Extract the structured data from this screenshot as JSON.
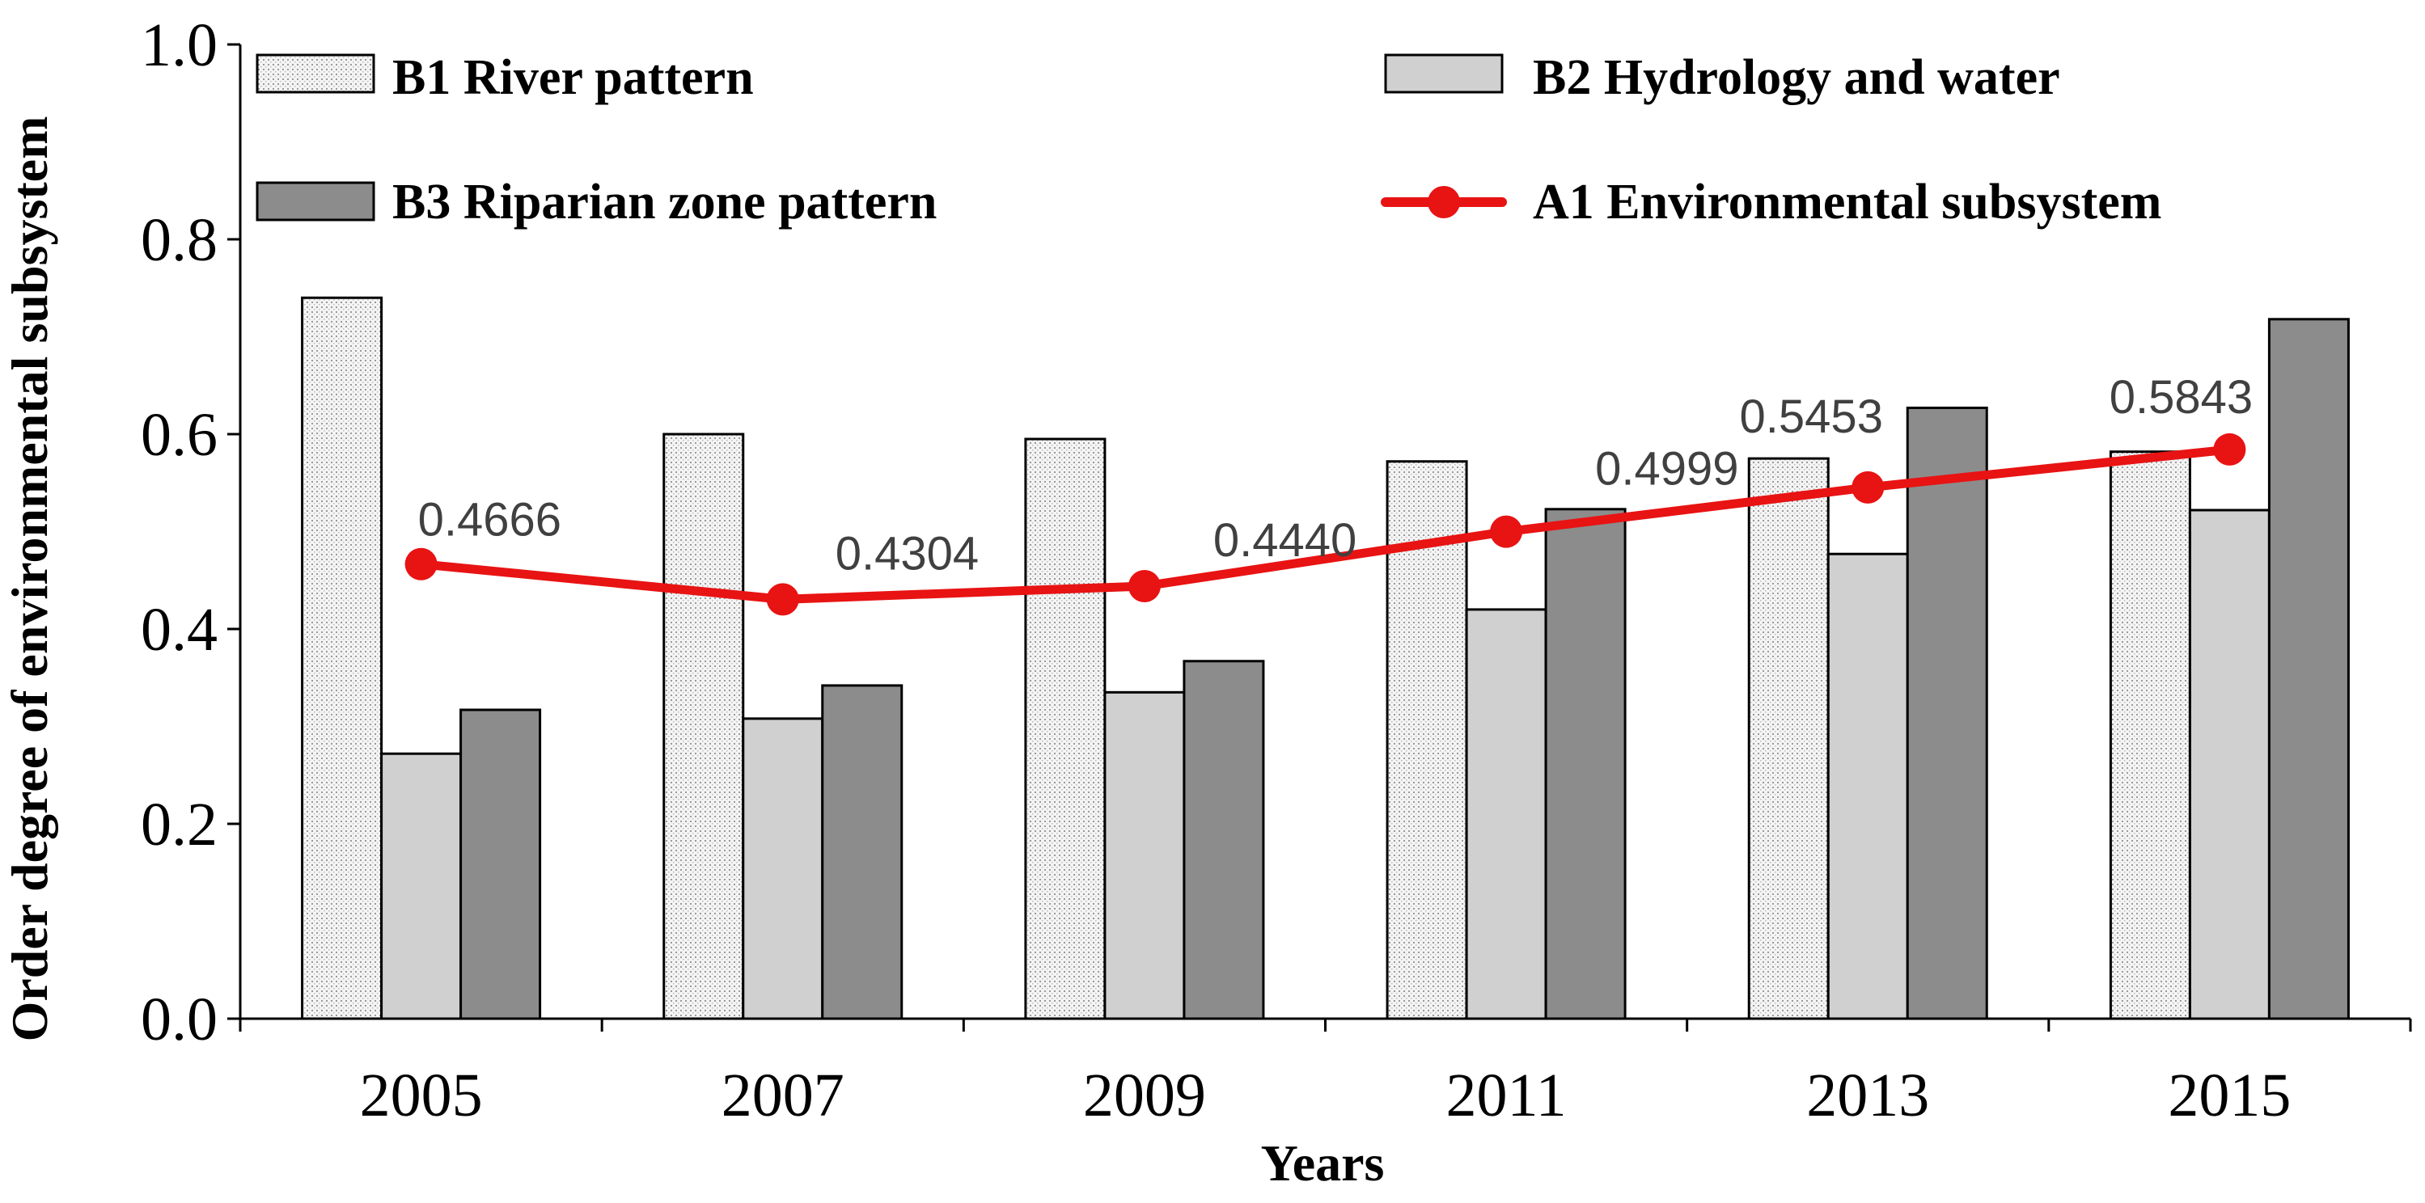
{
  "chart_data": {
    "type": "bar",
    "categories": [
      "2005",
      "2007",
      "2009",
      "2011",
      "2013",
      "2015"
    ],
    "series": [
      {
        "name": "B1 River pattern",
        "kind": "bar",
        "color": "#f2f2f2",
        "pattern": "dotted",
        "values": [
          0.74,
          0.6,
          0.595,
          0.572,
          0.575,
          0.582
        ]
      },
      {
        "name": "B2 Hydrology and water",
        "kind": "bar",
        "color": "#d0d0d0",
        "values": [
          0.272,
          0.308,
          0.335,
          0.42,
          0.477,
          0.522
        ]
      },
      {
        "name": "B3 Riparian zone pattern",
        "kind": "bar",
        "color": "#8c8c8c",
        "values": [
          0.317,
          0.342,
          0.367,
          0.523,
          0.627,
          0.718
        ]
      },
      {
        "name": "A1 Environmental subsystem",
        "kind": "line",
        "color": "#e81313",
        "values": [
          0.4666,
          0.4304,
          0.444,
          0.4999,
          0.5453,
          0.5843
        ]
      }
    ],
    "data_labels": [
      "0.4666",
      "0.4304",
      "0.4440",
      "0.4999",
      "0.5453",
      "0.5843"
    ],
    "xlabel": "Years",
    "ylabel": "Order degree of environmental subsystem",
    "ylim": [
      0,
      1.0
    ],
    "yticks": [
      "0.0",
      "0.2",
      "0.4",
      "0.6",
      "0.8",
      "1.0"
    ],
    "legend_position": "top"
  }
}
